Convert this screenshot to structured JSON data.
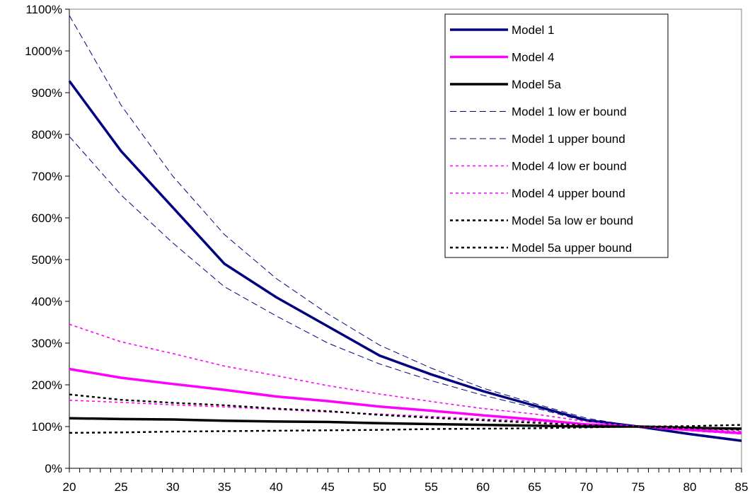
{
  "chart_data": {
    "type": "line",
    "title": "",
    "xlabel": "",
    "ylabel": "",
    "xlim": [
      20,
      85
    ],
    "ylim": [
      0,
      1100
    ],
    "x_ticks": [
      20,
      25,
      30,
      35,
      40,
      45,
      50,
      55,
      60,
      65,
      70,
      75,
      80,
      85
    ],
    "y_ticks": [
      0,
      100,
      200,
      300,
      400,
      500,
      600,
      700,
      800,
      900,
      1000,
      1100
    ],
    "y_unit": "%",
    "grid": false,
    "legend_position": "top-right",
    "x": [
      20,
      25,
      30,
      35,
      40,
      45,
      50,
      55,
      60,
      65,
      70,
      75,
      80,
      85
    ],
    "series": [
      {
        "name": "Model 1",
        "color": "#000080",
        "style": "solid",
        "width": 3.5,
        "values": [
          928,
          760,
          625,
          490,
          410,
          340,
          270,
          225,
          185,
          150,
          115,
          100,
          82,
          66
        ]
      },
      {
        "name": "Model 4",
        "color": "#FF00FF",
        "style": "solid",
        "width": 3.5,
        "values": [
          238,
          217,
          202,
          188,
          172,
          161,
          148,
          138,
          127,
          117,
          105,
          100,
          92,
          84
        ]
      },
      {
        "name": "Model 5a",
        "color": "#000000",
        "style": "solid",
        "width": 3.5,
        "values": [
          120,
          118,
          117,
          114,
          112,
          111,
          108,
          106,
          104,
          102,
          100,
          100,
          97,
          95
        ]
      },
      {
        "name": "Model 1 low er bound",
        "color": "#000080",
        "style": "dashed",
        "width": 1,
        "values": [
          795,
          655,
          540,
          435,
          365,
          300,
          250,
          210,
          175,
          145,
          112,
          100,
          82,
          66
        ]
      },
      {
        "name": "Model 1 upper bound",
        "color": "#000080",
        "style": "dashed",
        "width": 1,
        "values": [
          1085,
          870,
          700,
          560,
          455,
          370,
          295,
          240,
          192,
          155,
          120,
          100,
          82,
          66
        ]
      },
      {
        "name": "Model 4 low er bound",
        "color": "#FF00FF",
        "style": "dotted",
        "width": 1.6,
        "values": [
          163,
          158,
          152,
          147,
          141,
          135,
          130,
          124,
          118,
          113,
          106,
          100,
          90,
          82
        ]
      },
      {
        "name": "Model 4 upper bound",
        "color": "#FF00FF",
        "style": "dotted",
        "width": 1.6,
        "values": [
          345,
          303,
          275,
          245,
          222,
          198,
          178,
          160,
          143,
          130,
          112,
          100,
          95,
          88
        ]
      },
      {
        "name": "Model 5a low er bound",
        "color": "#000000",
        "style": "dotted",
        "width": 2.4,
        "values": [
          85,
          86,
          88,
          89,
          90,
          91,
          92,
          94,
          95,
          96,
          98,
          100,
          101,
          104
        ]
      },
      {
        "name": "Model 5a upper bound",
        "color": "#000000",
        "style": "dotted",
        "width": 2.4,
        "values": [
          177,
          164,
          157,
          151,
          143,
          137,
          128,
          121,
          115,
          109,
          103,
          100,
          96,
          92
        ]
      }
    ]
  }
}
